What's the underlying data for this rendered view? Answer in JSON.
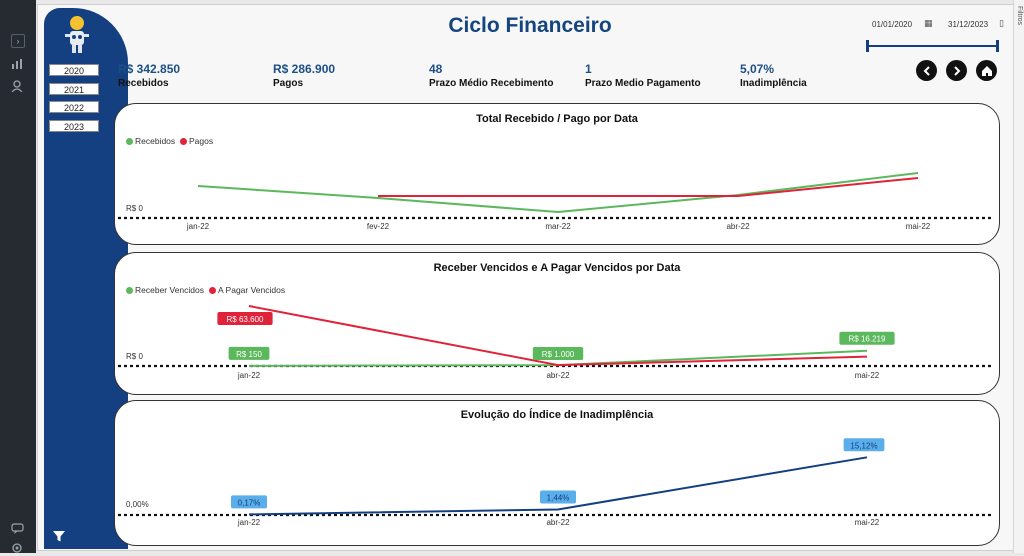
{
  "sidebar_icons": [
    "expand-icon",
    "chart-icon",
    "user-icon",
    "chat-icon",
    "settings-icon"
  ],
  "filters_pane": {
    "label": "Filtros"
  },
  "report": {
    "title": "Ciclo Financeiro"
  },
  "year_buttons": [
    "2020",
    "2021",
    "2022",
    "2023"
  ],
  "date_range": {
    "start": "01/01/2020",
    "end": "31/12/2023"
  },
  "kpis": [
    {
      "value": "R$ 342.850",
      "label": "Recebidos"
    },
    {
      "value": "R$ 286.900",
      "label": "Pagos"
    },
    {
      "value": "48",
      "label": "Prazo Médio Recebimento"
    },
    {
      "value": "1",
      "label": "Prazo Medio Pagamento"
    },
    {
      "value": "5,07%",
      "label": "Inadimplência"
    }
  ],
  "colors": {
    "green": "#5cb85c",
    "red": "#e0233a",
    "navy": "#143f80",
    "lightblue": "#5aaeea"
  },
  "chart_data": [
    {
      "type": "line",
      "title": "Total Recebido / Pago por Data",
      "categories": [
        "jan-22",
        "fev-22",
        "mar-22",
        "abr-22",
        "mai-22"
      ],
      "zero_label": "R$ 0",
      "series": [
        {
          "name": "Recebidos",
          "color": "#5cb85c",
          "values": [
            32000,
            20000,
            6000,
            23000,
            45000
          ]
        },
        {
          "name": "Pagos",
          "color": "#e0233a",
          "values": [
            null,
            22000,
            22000,
            22000,
            40000
          ]
        }
      ],
      "ylim": [
        0,
        56000
      ],
      "legend": "top-left"
    },
    {
      "type": "line",
      "title": "Receber Vencidos e A Pagar Vencidos por Data",
      "categories": [
        "jan-22",
        "abr-22",
        "mai-22"
      ],
      "zero_label": "R$ 0",
      "series": [
        {
          "name": "Receber Vencidos",
          "color": "#5cb85c",
          "values": [
            150,
            1000,
            16219
          ],
          "labels": [
            "R$ 150",
            "R$ 1.000",
            "R$ 16.219"
          ]
        },
        {
          "name": "A Pagar Vencidos",
          "color": "#e0233a",
          "values": [
            63600,
            1000,
            10000
          ],
          "labels": [
            "R$ 63.600",
            null,
            null
          ]
        }
      ],
      "ylim": [
        0,
        70000
      ],
      "legend": "top-left"
    },
    {
      "type": "line",
      "title": "Evolução do Índice de Inadimplência",
      "categories": [
        "jan-22",
        "abr-22",
        "mai-22"
      ],
      "zero_label": "0,00%",
      "series": [
        {
          "name": "Inadimplência",
          "color": "#143f80",
          "values": [
            0.17,
            1.44,
            15.12
          ],
          "labels": [
            "0,17%",
            "1,44%",
            "15,12%"
          ]
        }
      ],
      "ylim": [
        0,
        16.5
      ]
    }
  ]
}
